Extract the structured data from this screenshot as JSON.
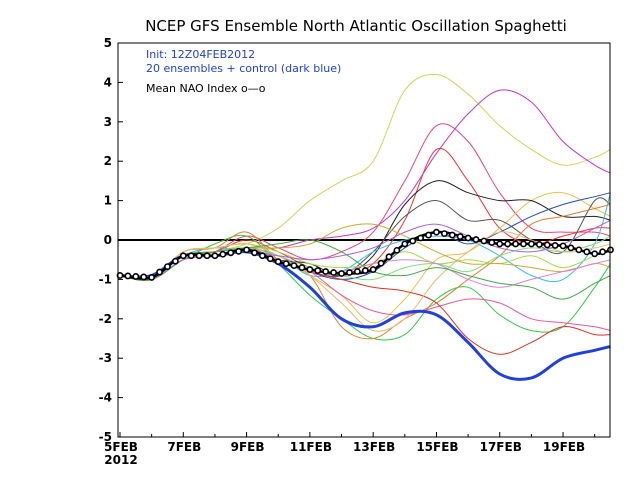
{
  "chart_data": {
    "type": "line",
    "title": "NCEP GFS Ensemble North Atlantic Oscillation Spaghetti",
    "xlabel": "",
    "ylabel": "",
    "ylim": [
      -5,
      5
    ],
    "yticks": [
      "5",
      "4",
      "3",
      "2",
      "1",
      "0",
      "-1",
      "-2",
      "-3",
      "-4",
      "-5"
    ],
    "x_tick_labels": [
      "5FEB",
      "7FEB",
      "9FEB",
      "11FEB",
      "13FEB",
      "15FEB",
      "17FEB",
      "19FEB"
    ],
    "x_year_label": "2012",
    "zero_line": 0,
    "legend": {
      "init": "Init: 12Z04FEB2012",
      "members": "20 ensembles + control (dark blue)",
      "mean": "Mean NAO Index o—o"
    },
    "x_days": [
      5,
      6,
      7,
      8,
      9,
      10,
      11,
      12,
      13,
      14,
      15,
      16,
      17,
      18,
      19,
      20,
      20.5
    ],
    "series": [
      {
        "name": "control (dark blue)",
        "color": "#2040e0",
        "width": 3,
        "values": [
          -0.9,
          -0.9,
          -0.4,
          -0.4,
          -0.3,
          -0.6,
          -1.2,
          -2.0,
          -2.2,
          -1.85,
          -1.9,
          -2.6,
          -3.4,
          -3.5,
          -3.0,
          -2.8,
          -2.7
        ]
      },
      {
        "color": "#c0dd55",
        "values": [
          -0.9,
          -1.0,
          -0.5,
          -0.3,
          -0.1,
          0.3,
          1.0,
          1.5,
          2.0,
          3.8,
          4.2,
          3.7,
          2.9,
          2.3,
          1.9,
          2.1,
          2.3
        ]
      },
      {
        "color": "#cc33cc",
        "values": [
          -0.9,
          -1.0,
          -0.4,
          -0.3,
          -0.2,
          -0.2,
          0.0,
          0.1,
          0.3,
          1.0,
          2.2,
          3.2,
          3.8,
          3.5,
          2.5,
          1.9,
          1.7
        ]
      },
      {
        "color": "#ee4477",
        "values": [
          -0.9,
          -1.0,
          -0.5,
          -0.3,
          0.1,
          -0.2,
          -0.5,
          -0.3,
          0.2,
          1.5,
          2.9,
          2.5,
          1.2,
          0.3,
          0.2,
          0.2,
          0.1
        ]
      },
      {
        "color": "#ff3333",
        "values": [
          -0.9,
          -1.0,
          -0.4,
          -0.3,
          0.0,
          -0.3,
          -0.7,
          -0.9,
          -0.6,
          0.5,
          2.3,
          1.5,
          0.3,
          -0.1,
          0.1,
          0.3,
          0.3
        ]
      },
      {
        "color": "#f0c04a",
        "values": [
          -0.9,
          -1.0,
          -0.3,
          -0.2,
          -0.1,
          -0.4,
          -0.9,
          -1.4,
          -2.1,
          -1.5,
          -0.5,
          -0.3,
          0.3,
          1.0,
          1.2,
          0.8,
          0.6
        ]
      },
      {
        "color": "#202020",
        "values": [
          -0.9,
          -1.0,
          -0.4,
          -0.4,
          -0.2,
          -0.5,
          -0.6,
          -0.9,
          -0.4,
          0.9,
          1.5,
          1.2,
          1.0,
          1.0,
          0.6,
          0.6,
          0.5
        ]
      },
      {
        "color": "#555555",
        "values": [
          -0.9,
          -1.0,
          -0.4,
          -0.4,
          -0.3,
          -0.5,
          -0.8,
          -0.9,
          -0.3,
          0.6,
          1.0,
          0.5,
          0.5,
          0.0,
          -0.3,
          1.0,
          0.9
        ]
      },
      {
        "color": "#2ecc40",
        "values": [
          -0.9,
          -1.0,
          -0.5,
          -0.1,
          0.1,
          -0.6,
          -1.4,
          -2.0,
          -2.5,
          -2.4,
          -1.5,
          -1.2,
          -1.9,
          -2.3,
          -2.2,
          -1.2,
          -0.6
        ]
      },
      {
        "color": "#33c0f0",
        "values": [
          -0.9,
          -1.0,
          -0.4,
          -0.2,
          -0.3,
          -0.4,
          -0.9,
          -0.8,
          -0.3,
          0.0,
          0.1,
          0.0,
          -0.4,
          -0.9,
          -1.0,
          -0.1,
          1.2
        ]
      },
      {
        "color": "#2050c0",
        "values": [
          -0.9,
          -1.0,
          -0.4,
          -0.3,
          -0.2,
          -0.4,
          -0.8,
          -1.0,
          -0.8,
          -0.2,
          0.2,
          -0.1,
          0.2,
          0.6,
          0.9,
          1.1,
          1.2
        ]
      },
      {
        "color": "#e08030",
        "values": [
          -0.9,
          -1.0,
          -0.3,
          -0.2,
          0.2,
          -0.5,
          -0.9,
          -2.2,
          -2.5,
          -2.0,
          -1.6,
          -1.0,
          -0.4,
          0.4,
          0.6,
          0.8,
          0.9
        ]
      },
      {
        "color": "#a0e040",
        "values": [
          -0.9,
          -1.0,
          -0.3,
          -0.2,
          -0.1,
          -0.3,
          -0.6,
          -0.7,
          -0.6,
          -0.3,
          -0.6,
          -0.5,
          -0.6,
          -0.4,
          -0.7,
          -0.4,
          -0.3
        ]
      },
      {
        "color": "#ee5599",
        "values": [
          -0.9,
          -1.0,
          -0.5,
          -0.4,
          -0.2,
          -0.5,
          -0.8,
          -1.4,
          -1.8,
          -1.9,
          -1.7,
          -1.5,
          -1.6,
          -2.0,
          -2.1,
          -2.2,
          -2.3
        ]
      },
      {
        "color": "#dd3322",
        "values": [
          -0.9,
          -1.0,
          -0.4,
          -0.4,
          -0.3,
          -0.5,
          -0.8,
          -1.0,
          -1.2,
          -1.3,
          -1.6,
          -2.5,
          -2.9,
          -2.6,
          -2.2,
          -2.4,
          -2.4
        ]
      },
      {
        "color": "#f2b870",
        "values": [
          -0.9,
          -1.0,
          -0.3,
          -0.2,
          -0.1,
          -0.4,
          -0.9,
          -1.6,
          -2.3,
          -2.0,
          -1.0,
          -0.3,
          0.2,
          0.0,
          -0.3,
          -0.2,
          -0.1
        ]
      },
      {
        "color": "#80dd80",
        "values": [
          -0.9,
          -1.0,
          -0.4,
          -0.3,
          -0.2,
          -0.4,
          -0.7,
          -0.9,
          -1.0,
          -0.7,
          -0.6,
          -0.8,
          -0.4,
          -0.2,
          -0.3,
          -0.1,
          0.1
        ]
      },
      {
        "color": "#b060dd",
        "values": [
          -0.9,
          -1.0,
          -0.5,
          -0.4,
          -0.3,
          -0.4,
          -0.5,
          -0.4,
          -0.2,
          0.2,
          0.4,
          0.1,
          -0.2,
          -0.3,
          -0.1,
          0.3,
          0.5
        ]
      },
      {
        "color": "#ccaa30",
        "values": [
          -0.9,
          -1.0,
          -0.4,
          -0.3,
          -0.2,
          -0.2,
          -0.1,
          0.3,
          0.4,
          0.1,
          -0.3,
          -0.6,
          -0.6,
          -0.7,
          -0.8,
          -0.6,
          -0.7
        ]
      },
      {
        "color": "#e07de0",
        "values": [
          -0.9,
          -1.0,
          -0.4,
          -0.4,
          -0.3,
          -0.5,
          -0.8,
          -0.8,
          -0.6,
          -0.5,
          -0.6,
          -1.0,
          -1.2,
          -1.0,
          -0.8,
          -0.6,
          -0.5
        ]
      },
      {
        "color": "#44aa44",
        "values": [
          -0.9,
          -1.0,
          -0.4,
          -0.3,
          -0.2,
          -0.1,
          0.0,
          -0.3,
          -0.8,
          -0.9,
          -0.7,
          -0.9,
          -1.1,
          -1.2,
          -1.5,
          -1.1,
          -0.9
        ]
      }
    ],
    "mean": {
      "name": "Mean NAO Index",
      "values": [
        -0.9,
        -0.95,
        -0.4,
        -0.4,
        -0.25,
        -0.55,
        -0.75,
        -0.85,
        -0.75,
        -0.1,
        0.2,
        0.05,
        -0.1,
        -0.1,
        -0.15,
        -0.35,
        -0.25
      ]
    }
  }
}
